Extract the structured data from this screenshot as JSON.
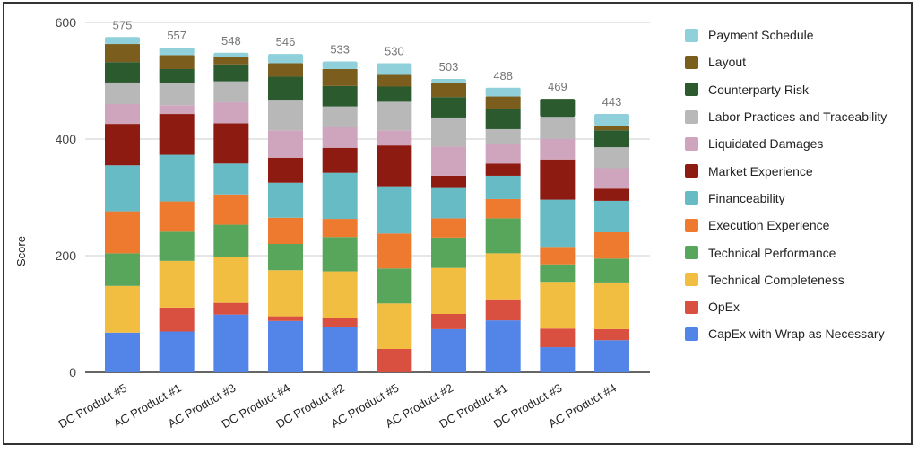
{
  "chart_data": {
    "type": "bar",
    "stacked": true,
    "title": "",
    "xlabel": "",
    "ylabel": "Score",
    "ylim": [
      0,
      600
    ],
    "yticks": [
      0,
      200,
      400,
      600
    ],
    "grid": true,
    "legend_position": "right",
    "categories": [
      "DC Product #5",
      "AC Product #1",
      "AC Product #3",
      "DC Product #4",
      "DC Product #2",
      "AC Product #5",
      "AC Product #2",
      "DC Product #1",
      "DC Product #3",
      "AC Product #4"
    ],
    "totals": [
      575,
      557,
      548,
      546,
      533,
      530,
      503,
      488,
      469,
      443
    ],
    "series": [
      {
        "name": "CapEx with Wrap as Necessary",
        "color": "#5384e8",
        "values": [
          68,
          70,
          99,
          88,
          78,
          0,
          74,
          89,
          43,
          55
        ]
      },
      {
        "name": "OpEx",
        "color": "#d95040",
        "values": [
          0,
          41,
          20,
          8,
          15,
          40,
          26,
          36,
          32,
          19
        ]
      },
      {
        "name": "Technical Completeness",
        "color": "#f2be42",
        "values": [
          80,
          80,
          79,
          79,
          80,
          78,
          79,
          79,
          80,
          80
        ]
      },
      {
        "name": "Technical Performance",
        "color": "#58a65c",
        "values": [
          56,
          50,
          55,
          45,
          59,
          60,
          52,
          60,
          30,
          41
        ]
      },
      {
        "name": "Execution Experience",
        "color": "#ee7a30",
        "values": [
          72,
          52,
          52,
          45,
          31,
          60,
          33,
          33,
          30,
          45
        ]
      },
      {
        "name": "Financeability",
        "color": "#66bbc4",
        "values": [
          79,
          80,
          53,
          60,
          79,
          81,
          52,
          40,
          81,
          54
        ]
      },
      {
        "name": "Market Experience",
        "color": "#8e1b12",
        "values": [
          71,
          70,
          69,
          43,
          43,
          70,
          21,
          21,
          69,
          21
        ]
      },
      {
        "name": "Liquidated Damages",
        "color": "#cfa5bd",
        "values": [
          34,
          15,
          36,
          47,
          35,
          26,
          50,
          34,
          35,
          35
        ]
      },
      {
        "name": "Labor Practices and Traceability",
        "color": "#b8b8b8",
        "values": [
          37,
          38,
          36,
          51,
          36,
          49,
          50,
          25,
          38,
          36
        ]
      },
      {
        "name": "Counterparty Risk",
        "color": "#2a5a2e",
        "values": [
          35,
          24,
          29,
          41,
          35,
          26,
          35,
          35,
          31,
          29
        ]
      },
      {
        "name": "Layout",
        "color": "#7b5e1e",
        "values": [
          31,
          24,
          12,
          23,
          29,
          20,
          25,
          21,
          0,
          8
        ]
      },
      {
        "name": "Payment Schedule",
        "color": "#8fd0da",
        "values": [
          12,
          13,
          8,
          16,
          13,
          20,
          6,
          15,
          0,
          20
        ]
      }
    ],
    "gridline_color": "#cccccc",
    "baseline_color": "#333333"
  }
}
